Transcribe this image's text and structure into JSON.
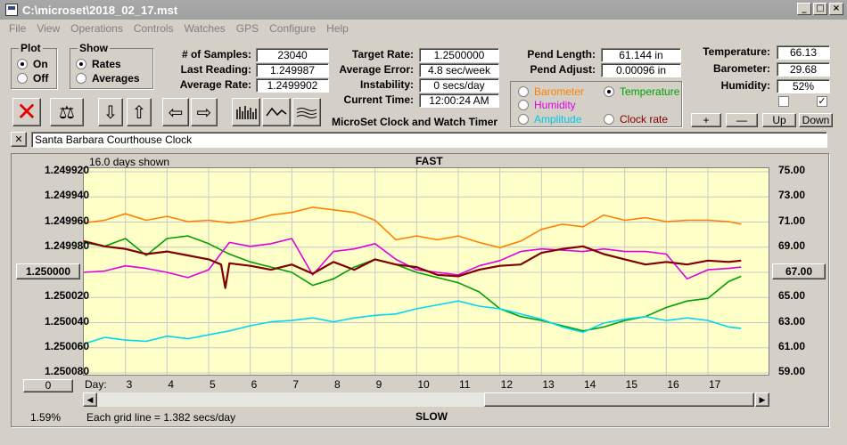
{
  "window": {
    "title": "C:\\microset\\2018_02_17.mst"
  },
  "menu": [
    "File",
    "View",
    "Operations",
    "Controls",
    "Watches",
    "GPS",
    "Configure",
    "Help"
  ],
  "plot_group": {
    "label": "Plot",
    "options": [
      {
        "label": "On",
        "selected": true
      },
      {
        "label": "Off",
        "selected": false
      }
    ]
  },
  "show_group": {
    "label": "Show",
    "options": [
      {
        "label": "Rates",
        "selected": true
      },
      {
        "label": "Averages",
        "selected": false
      }
    ]
  },
  "stats": {
    "samples_label": "# of Samples:",
    "samples": "23040",
    "last_label": "Last Reading:",
    "last": "1.249987",
    "avg_rate_label": "Average Rate:",
    "avg_rate": "1.2499902",
    "target_label": "Target Rate:",
    "target": "1.2500000",
    "avg_err_label": "Average Error:",
    "avg_err": "4.8 sec/week",
    "instab_label": "Instability:",
    "instab": "0 secs/day",
    "time_label": "Current Time:",
    "time": "12:00:24 AM",
    "pend_len_label": "Pend Length:",
    "pend_len": "61.144 in",
    "pend_adj_label": "Pend Adjust:",
    "pend_adj": "0.00096 in",
    "temp_label": "Temperature:",
    "temp": "66.13",
    "baro_label": "Barometer:",
    "baro": "29.68",
    "hum_label": "Humidity:",
    "hum": "52%"
  },
  "app_name": "MicroSet Clock and Watch Timer",
  "sensor_options": [
    {
      "label": "Barometer",
      "color": "#ff8000",
      "selected": false
    },
    {
      "label": "Temperature",
      "color": "#00a000",
      "selected": true
    },
    {
      "label": "Humidity",
      "color": "#e000e0",
      "selected": false
    },
    {
      "label": "Clock rate",
      "color": "#800000",
      "selected": false
    },
    {
      "label": "Amplitude",
      "color": "#00c8e8",
      "selected": false
    }
  ],
  "adjust_buttons": {
    "plus": "+",
    "minus": "—",
    "up": "Up",
    "down": "Down"
  },
  "checkboxes": [
    {
      "checked": false
    },
    {
      "checked": true
    }
  ],
  "clock_name": "Santa Barbara Courthouse Clock",
  "close_label": "✕",
  "chart_data": {
    "type": "line",
    "top_label": "FAST",
    "bottom_label": "SLOW",
    "days_shown": "16.0 days shown",
    "grid_note": "Each grid line = 1.382 secs/day",
    "percent": "1.59%",
    "center_left": "1.250000",
    "center_right": "67.00",
    "zero_button": "0",
    "day_label": "Day:",
    "x_ticks": [
      "3",
      "4",
      "5",
      "6",
      "7",
      "8",
      "9",
      "10",
      "11",
      "12",
      "13",
      "14",
      "15",
      "16",
      "17"
    ],
    "y_left_ticks": [
      "1.249920",
      "1.249940",
      "1.249960",
      "1.249980",
      "1.250000",
      "1.250020",
      "1.250040",
      "1.250060",
      "1.250080"
    ],
    "y_right_ticks": [
      "75.00",
      "73.00",
      "71.00",
      "69.00",
      "67.00",
      "65.00",
      "63.00",
      "61.00",
      "59.00"
    ],
    "xlim": [
      2.0,
      18.5
    ],
    "ylim_right": [
      59,
      75
    ],
    "series": [
      {
        "color": "#ff8000",
        "x": [
          2,
          2.5,
          3,
          3.5,
          4,
          4.5,
          5,
          5.5,
          6,
          6.5,
          7,
          7.5,
          8,
          8.5,
          9,
          9.5,
          10,
          10.5,
          11,
          11.5,
          12,
          12.5,
          13,
          13.5,
          14,
          14.5,
          15,
          15.5,
          16,
          16.5,
          17,
          17.5,
          17.8
        ],
        "y": [
          70.8,
          71.0,
          71.5,
          71.0,
          71.3,
          70.9,
          71.0,
          70.8,
          71.0,
          71.4,
          71.6,
          72.0,
          71.8,
          71.6,
          71.0,
          69.5,
          69.8,
          69.5,
          69.8,
          69.3,
          68.9,
          69.4,
          70.3,
          70.7,
          70.5,
          71.4,
          71.0,
          71.2,
          70.9,
          71.0,
          71.0,
          70.9,
          70.7
        ]
      },
      {
        "color": "#00a000",
        "x": [
          2,
          2.5,
          3,
          3.5,
          4,
          4.5,
          5,
          5.5,
          6,
          6.5,
          7,
          7.5,
          8,
          8.5,
          9,
          9.5,
          10,
          10.5,
          11,
          11.5,
          12,
          12.5,
          13,
          13.5,
          14,
          14.5,
          15,
          15.5,
          16,
          16.5,
          17,
          17.5,
          17.8
        ],
        "y": [
          69.3,
          69.0,
          69.6,
          68.3,
          69.6,
          69.8,
          69.2,
          68.4,
          67.8,
          67.4,
          67.0,
          66.0,
          66.5,
          67.4,
          68.0,
          67.6,
          67.0,
          66.6,
          66.2,
          65.5,
          64.2,
          63.6,
          63.3,
          62.9,
          62.5,
          62.8,
          63.3,
          63.6,
          64.3,
          64.8,
          65.0,
          66.3,
          66.7
        ]
      },
      {
        "color": "#e000e0",
        "x": [
          2,
          2.5,
          3,
          3.5,
          4,
          4.5,
          5,
          5.5,
          6,
          6.5,
          7,
          7.5,
          8,
          8.5,
          9,
          9.5,
          10,
          10.5,
          11,
          11.5,
          12,
          12.5,
          13,
          13.5,
          14,
          14.5,
          15,
          15.5,
          16,
          16.5,
          17,
          17.5,
          17.8
        ],
        "y": [
          67.0,
          67.1,
          67.5,
          67.3,
          67.0,
          66.6,
          67.2,
          69.3,
          69.0,
          69.2,
          69.6,
          66.8,
          68.6,
          68.8,
          69.2,
          68.0,
          67.2,
          67.0,
          66.8,
          67.5,
          67.9,
          68.6,
          68.8,
          68.7,
          68.6,
          68.8,
          68.6,
          68.6,
          68.4,
          66.5,
          67.2,
          67.3,
          67.4
        ]
      },
      {
        "color": "#800000",
        "x": [
          2,
          2.5,
          3,
          3.5,
          4,
          4.5,
          5,
          5.3,
          5.4,
          5.5,
          6,
          6.5,
          7,
          7.5,
          8,
          8.5,
          9,
          9.5,
          10,
          10.5,
          11,
          11.5,
          12,
          12.5,
          13,
          13.5,
          14,
          14.5,
          15,
          15.5,
          16,
          16.5,
          17,
          17.5,
          17.8
        ],
        "y": [
          69.4,
          69.0,
          68.8,
          68.4,
          68.6,
          68.3,
          68.0,
          67.6,
          65.8,
          67.7,
          67.5,
          67.2,
          67.6,
          66.9,
          67.8,
          67.2,
          68.0,
          67.6,
          67.4,
          66.8,
          66.7,
          67.2,
          67.5,
          67.6,
          68.5,
          68.8,
          69.0,
          68.4,
          68.0,
          67.6,
          67.8,
          67.6,
          67.9,
          67.8,
          67.9
        ]
      },
      {
        "color": "#00d8f0",
        "x": [
          2,
          2.5,
          3,
          3.5,
          4,
          4.5,
          5,
          5.5,
          6,
          6.5,
          7,
          7.5,
          8,
          8.5,
          9,
          9.5,
          10,
          10.5,
          11,
          11.5,
          12,
          12.5,
          13,
          13.5,
          14,
          14.5,
          15,
          15.5,
          16,
          16.5,
          17,
          17.5,
          17.8
        ],
        "y": [
          61.5,
          62.0,
          61.8,
          61.7,
          62.1,
          61.9,
          62.2,
          62.5,
          62.9,
          63.2,
          63.3,
          63.5,
          63.2,
          63.5,
          63.7,
          63.8,
          64.2,
          64.5,
          64.8,
          64.4,
          64.2,
          63.8,
          63.4,
          62.8,
          62.4,
          63.1,
          63.4,
          63.6,
          63.3,
          63.5,
          63.3,
          62.8,
          62.7
        ]
      }
    ]
  }
}
